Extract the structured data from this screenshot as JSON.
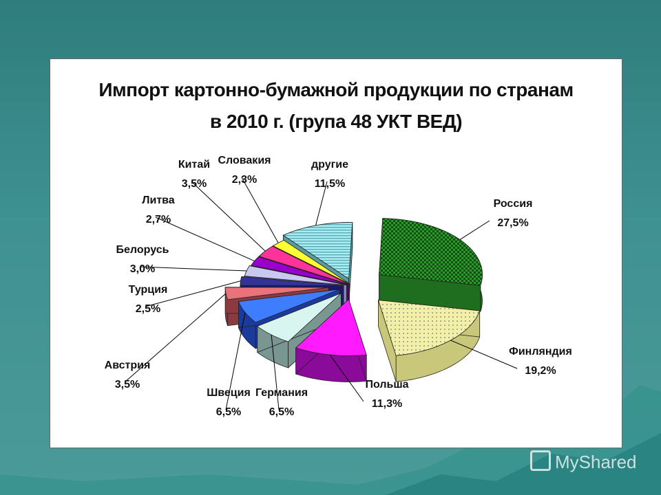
{
  "watermark": "MyShared",
  "chart_data": {
    "type": "pie",
    "title": [
      "Импорт картонно-бумажной продукции по странам",
      "в 2010 г. (група 48 УКТ ВЕД)"
    ],
    "legend": "none",
    "slices": [
      {
        "name": "Россия",
        "value_label": "27,5%",
        "value": 27.5,
        "color": "#2e9a2e",
        "side": "#1f6e1f"
      },
      {
        "name": "Финляндия",
        "value_label": "19,2%",
        "value": 19.2,
        "color": "#f2f0a8",
        "side": "#c9c77a"
      },
      {
        "name": "Польша",
        "value_label": "11,3%",
        "value": 11.3,
        "color": "#ff1aff",
        "side": "#8a0a9a"
      },
      {
        "name": "Германия",
        "value_label": "6,5%",
        "value": 6.5,
        "color": "#d9f5ef",
        "side": "#7a9690"
      },
      {
        "name": "Швеция",
        "value_label": "6,5%",
        "value": 6.5,
        "color": "#3f7dff",
        "side": "#1c3a9e"
      },
      {
        "name": "Австрия",
        "value_label": "3,5%",
        "value": 3.5,
        "color": "#e8737a",
        "side": "#8c3a40"
      },
      {
        "name": "Турция",
        "value_label": "2,5%",
        "value": 2.5,
        "color": "#333399",
        "side": "#1a1a66"
      },
      {
        "name": "Белорусь",
        "value_label": "3,0%",
        "value": 3.0,
        "color": "#c8c8f0",
        "side": "#8a8ab0"
      },
      {
        "name": "Литва",
        "value_label": "2,7%",
        "value": 2.7,
        "color": "#9900cc",
        "side": "#5c0080"
      },
      {
        "name": "Китай",
        "value_label": "3,5%",
        "value": 3.5,
        "color": "#ff3399",
        "side": "#991f5c"
      },
      {
        "name": "Словакия",
        "value_label": "2,3%",
        "value": 2.3,
        "color": "#ffff33",
        "side": "#999922"
      },
      {
        "name": "другие",
        "value_label": "11,5%",
        "value": 11.5,
        "color": "#a8ecf4",
        "side": "#5c9aa2"
      }
    ]
  }
}
